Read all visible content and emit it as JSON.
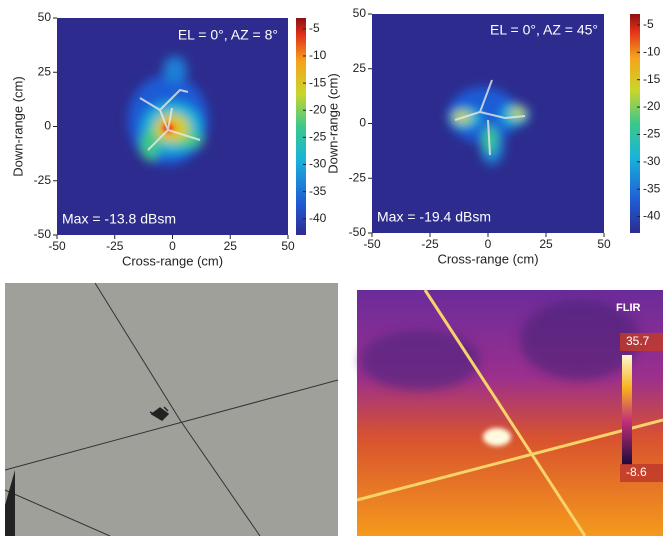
{
  "chart_data": [
    {
      "type": "heatmap",
      "xlabel": "Cross-range (cm)",
      "ylabel": "Down-range (cm)",
      "xlim": [
        -50,
        50
      ],
      "xticks": [
        -50,
        -25,
        0,
        25,
        50
      ],
      "ylim": [
        -50,
        50
      ],
      "yticks": [
        -50,
        -25,
        0,
        25,
        50
      ],
      "clim": [
        -43,
        -3
      ],
      "cticks": [
        -5,
        -10,
        -15,
        -20,
        -25,
        -30,
        -35,
        -40
      ],
      "background_color": "#2d2c8e",
      "annotations": [
        "EL = 0°, AZ = 8°",
        "Max = -13.8 dBsm"
      ]
    },
    {
      "type": "heatmap",
      "xlabel": "Cross-range (cm)",
      "ylabel": "Down-range (cm)",
      "xlim": [
        -50,
        50
      ],
      "xticks": [
        -50,
        -25,
        0,
        25,
        50
      ],
      "ylim": [
        -50,
        50
      ],
      "yticks": [
        -50,
        -25,
        0,
        25,
        50
      ],
      "clim": [
        -43,
        -3
      ],
      "cticks": [
        -5,
        -10,
        -15,
        -20,
        -25,
        -30,
        -35,
        -40
      ],
      "background_color": "#2d2c8e",
      "annotations": [
        "EL = 0°, AZ = 45°",
        "Max = -19.4 dBsm"
      ]
    }
  ],
  "thermal_image": {
    "brand": "FLIR",
    "scale_max": 35.7,
    "scale_min": -8.6
  }
}
